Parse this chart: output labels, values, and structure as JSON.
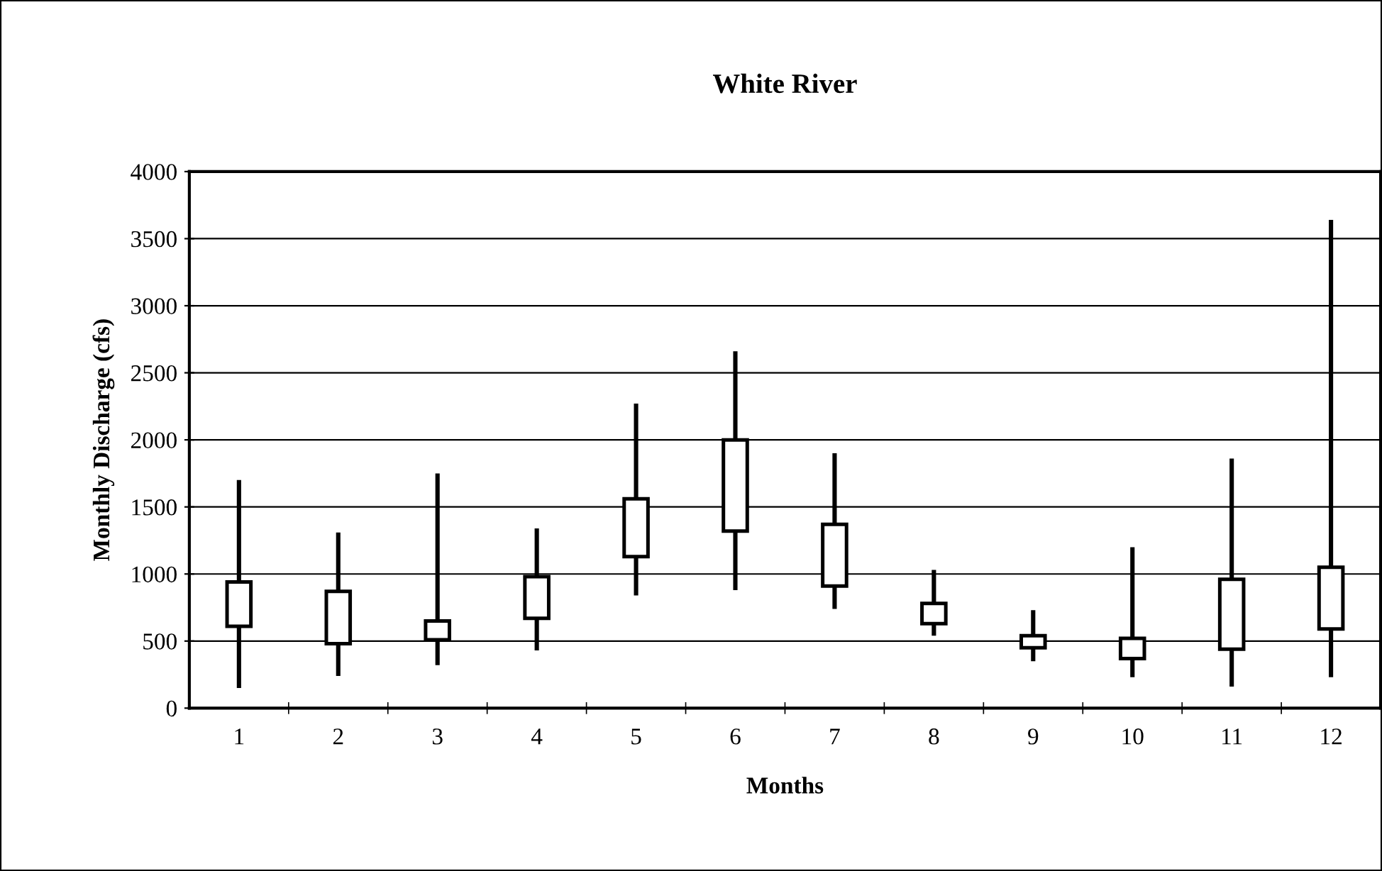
{
  "chart_data": {
    "type": "candlestick",
    "title": "White River",
    "xlabel": "Months",
    "ylabel": "Monthly Discharge (cfs)",
    "categories": [
      "1",
      "2",
      "3",
      "4",
      "5",
      "6",
      "7",
      "8",
      "9",
      "10",
      "11",
      "12"
    ],
    "ohlc": [
      [
        610,
        1700,
        150,
        940
      ],
      [
        480,
        1310,
        240,
        870
      ],
      [
        510,
        1750,
        320,
        650
      ],
      [
        670,
        1340,
        430,
        980
      ],
      [
        1130,
        2270,
        840,
        1560
      ],
      [
        1320,
        2660,
        880,
        2000
      ],
      [
        910,
        1900,
        740,
        1370
      ],
      [
        630,
        1030,
        540,
        780
      ],
      [
        450,
        730,
        350,
        540
      ],
      [
        370,
        1200,
        230,
        520
      ],
      [
        440,
        1860,
        160,
        960
      ],
      [
        590,
        3640,
        230,
        1050
      ]
    ],
    "color": "#000000",
    "ylim": [
      0,
      4000
    ],
    "yticks": [
      0,
      500,
      1000,
      1500,
      2000,
      2500,
      3000,
      3500,
      4000
    ],
    "grid": "y"
  }
}
